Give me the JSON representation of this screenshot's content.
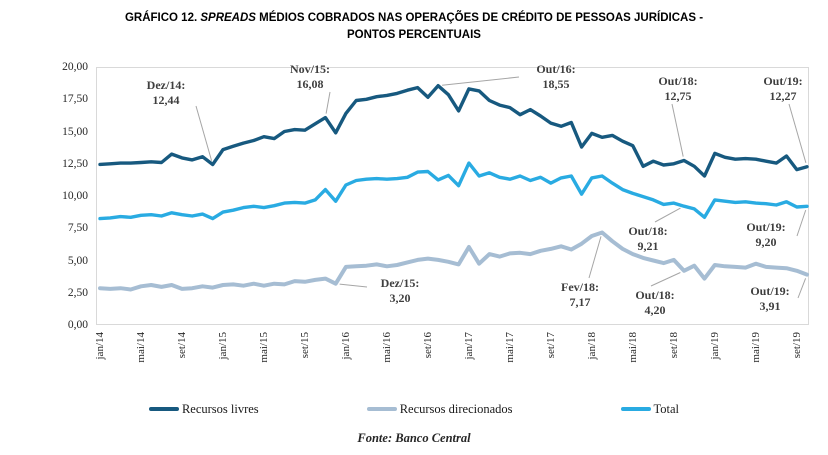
{
  "header": {
    "title_graph_label": "GRÁFICO 12. ",
    "title_italic": "SPREADS",
    "title_rest": " MÉDIOS COBRADOS NAS OPERAÇÕES DE CRÉDITO DE PESSOAS JURÍDICAS -",
    "title_line2": "PONTOS PERCENTUAIS"
  },
  "footer": {
    "source": "Fonte: Banco Central"
  },
  "chart_data": {
    "type": "line",
    "title": "GRÁFICO 12. SPREADS MÉDIOS COBRADOS NAS OPERAÇÕES DE CRÉDITO DE PESSOAS JURÍDICAS - PONTOS PERCENTUAIS",
    "unit": "pontos percentuais",
    "y_min": 0,
    "y_max": 20,
    "y_step": 2.5,
    "y_tick_labels": [
      "20,00",
      "17,50",
      "15,00",
      "12,50",
      "10,00",
      "7,50",
      "5,00",
      "2,50",
      "0,00"
    ],
    "x_tick_labels": [
      "jan/14",
      "mai/14",
      "set/14",
      "jan/15",
      "mai/15",
      "set/15",
      "jan/16",
      "mai/16",
      "set/16",
      "jan/17",
      "mai/17",
      "set/17",
      "jan/18",
      "mai/18",
      "set/18",
      "jan/19",
      "mai/19",
      "set/19"
    ],
    "x_tick_every": 4,
    "months_count": 70,
    "x_range_note": "monthly, jan/2014 to out/2019",
    "grid": false,
    "legend_position": "bottom",
    "series": [
      {
        "name": "Recursos livres",
        "color": "#17597F",
        "values": [
          12.45,
          12.5,
          12.55,
          12.55,
          12.6,
          12.65,
          12.6,
          13.25,
          12.95,
          12.8,
          13.05,
          12.44,
          13.6,
          13.85,
          14.1,
          14.3,
          14.6,
          14.45,
          15.0,
          15.15,
          15.1,
          15.6,
          16.08,
          14.9,
          16.4,
          17.4,
          17.5,
          17.7,
          17.8,
          17.95,
          18.2,
          18.4,
          17.65,
          18.55,
          17.85,
          16.6,
          18.3,
          18.15,
          17.4,
          17.05,
          16.85,
          16.3,
          16.7,
          16.2,
          15.65,
          15.4,
          15.7,
          13.8,
          14.85,
          14.55,
          14.7,
          14.25,
          13.9,
          12.3,
          12.7,
          12.4,
          12.5,
          12.75,
          12.3,
          11.55,
          13.3,
          13.0,
          12.85,
          12.9,
          12.85,
          12.7,
          12.55,
          13.1,
          12.05,
          12.27
        ]
      },
      {
        "name": "Recursos direcionados",
        "color": "#A6BDD3",
        "values": [
          2.85,
          2.8,
          2.85,
          2.75,
          3.0,
          3.1,
          2.95,
          3.1,
          2.8,
          2.85,
          3.0,
          2.9,
          3.1,
          3.15,
          3.05,
          3.2,
          3.05,
          3.2,
          3.15,
          3.4,
          3.35,
          3.5,
          3.6,
          3.2,
          4.5,
          4.55,
          4.6,
          4.7,
          4.55,
          4.65,
          4.85,
          5.05,
          5.15,
          5.05,
          4.9,
          4.7,
          6.05,
          4.75,
          5.5,
          5.3,
          5.55,
          5.6,
          5.5,
          5.75,
          5.9,
          6.1,
          5.85,
          6.3,
          6.9,
          7.17,
          6.5,
          5.9,
          5.5,
          5.2,
          5.0,
          4.8,
          5.05,
          4.2,
          4.6,
          3.6,
          4.65,
          4.55,
          4.5,
          4.45,
          4.75,
          4.5,
          4.45,
          4.4,
          4.2,
          3.91
        ]
      },
      {
        "name": "Total",
        "color": "#29ABE2",
        "values": [
          8.25,
          8.3,
          8.4,
          8.35,
          8.5,
          8.55,
          8.45,
          8.7,
          8.55,
          8.45,
          8.6,
          8.25,
          8.75,
          8.9,
          9.1,
          9.2,
          9.1,
          9.25,
          9.45,
          9.5,
          9.45,
          9.7,
          10.5,
          9.6,
          10.85,
          11.2,
          11.3,
          11.35,
          11.3,
          11.35,
          11.45,
          11.85,
          11.9,
          11.25,
          11.6,
          10.8,
          12.55,
          11.55,
          11.8,
          11.45,
          11.3,
          11.55,
          11.2,
          11.45,
          11.0,
          11.4,
          11.55,
          10.15,
          11.4,
          11.55,
          11.0,
          10.5,
          10.2,
          9.95,
          9.7,
          9.35,
          9.45,
          9.21,
          9.0,
          8.35,
          9.7,
          9.6,
          9.5,
          9.55,
          9.45,
          9.4,
          9.3,
          9.55,
          9.15,
          9.2
        ]
      }
    ],
    "annotations": [
      {
        "label": "Dez/14:",
        "value": "12,44",
        "series": 0,
        "month": 11
      },
      {
        "label": "Nov/15:",
        "value": "16,08",
        "series": 0,
        "month": 22
      },
      {
        "label": "Out/16:",
        "value": "18,55",
        "series": 0,
        "month": 33
      },
      {
        "label": "Out/18:",
        "value": "12,75",
        "series": 0,
        "month": 57
      },
      {
        "label": "Out/19:",
        "value": "12,27",
        "series": 0,
        "month": 69
      },
      {
        "label": "Out/18:",
        "value": "9,21",
        "series": 2,
        "month": 57
      },
      {
        "label": "Out/19:",
        "value": "9,20",
        "series": 2,
        "month": 69
      },
      {
        "label": "Dez/15:",
        "value": "3,20",
        "series": 1,
        "month": 23
      },
      {
        "label": "Fev/18:",
        "value": "7,17",
        "series": 1,
        "month": 49
      },
      {
        "label": "Out/18:",
        "value": "4,20",
        "series": 1,
        "month": 57
      },
      {
        "label": "Out/19:",
        "value": "3,91",
        "series": 1,
        "month": 69
      }
    ]
  }
}
